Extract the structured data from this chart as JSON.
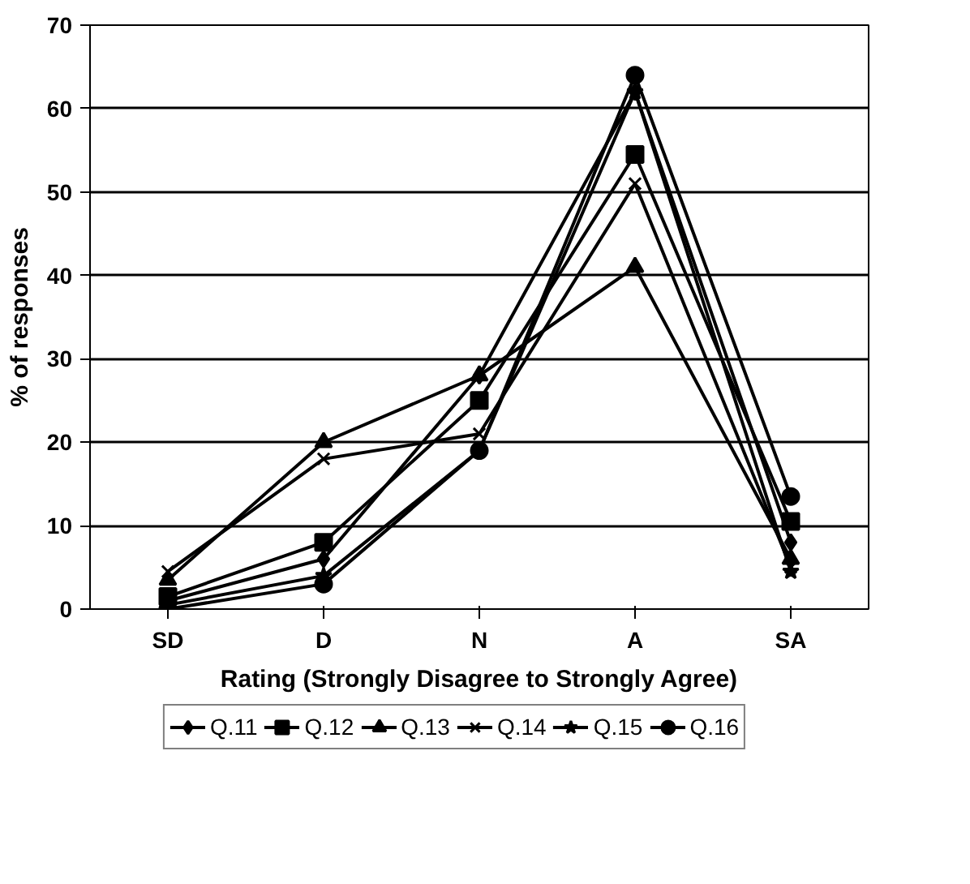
{
  "chart_data": {
    "type": "line",
    "xlabel": "Rating (Strongly Disagree to Strongly Agree)",
    "ylabel": "% of responses",
    "categories": [
      "SD",
      "D",
      "N",
      "A",
      "SA"
    ],
    "ylim": [
      0,
      70
    ],
    "yticks": [
      0,
      10,
      20,
      30,
      40,
      50,
      60,
      70
    ],
    "grid": "y",
    "legend": "bottom",
    "line_style": "solid",
    "series": [
      {
        "name": "Q.11",
        "color": "#000000",
        "marker": "diamond",
        "values": [
          1,
          6,
          28,
          62,
          8
        ]
      },
      {
        "name": "Q.12",
        "color": "#000000",
        "marker": "square",
        "values": [
          1.5,
          8,
          25,
          54.5,
          10.5
        ]
      },
      {
        "name": "Q.13",
        "color": "#000000",
        "marker": "triangle",
        "values": [
          3.5,
          20,
          28,
          41,
          6
        ]
      },
      {
        "name": "Q.14",
        "color": "#000000",
        "marker": "cross",
        "values": [
          4.5,
          18,
          21,
          51,
          5
        ]
      },
      {
        "name": "Q.15",
        "color": "#000000",
        "marker": "star",
        "values": [
          0.5,
          4,
          19,
          62,
          4.5
        ]
      },
      {
        "name": "Q.16",
        "color": "#000000",
        "marker": "circle",
        "values": [
          0,
          3,
          19,
          64,
          13.5
        ]
      }
    ]
  }
}
